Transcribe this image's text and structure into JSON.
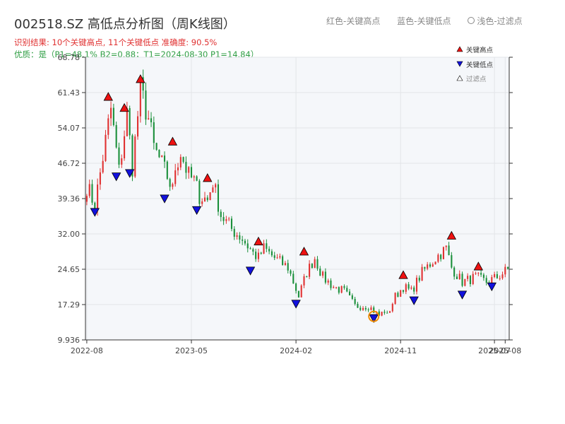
{
  "title": "002518.SZ 高低点分析图（周K线图）",
  "subtitle_result": "识别结果: 10个关键高点, 11个关键低点  准确度: 90.5%",
  "subtitle_quality": "优质：是（P1=48.1%  B2=0.88；T1=2024-08-30 P1=14.84）",
  "legend_top": {
    "red": "红色-关键高点",
    "blue": "蓝色-关键低点",
    "light": "浅色-过滤点"
  },
  "legend_box": {
    "high": "关键高点",
    "low": "关键低点",
    "filtered": "过滤点"
  },
  "colors": {
    "up": "#e03131",
    "down": "#1a8f3a",
    "high_marker": "#ee1111",
    "low_marker": "#1111dd",
    "highlight": "#f08c00",
    "plot_bg": "#f5f7fa",
    "grid": "#e2e4e8"
  },
  "chart_data": {
    "type": "candlestick",
    "ylim": [
      9.936,
      68.78
    ],
    "yticks": [
      "9.936",
      "17.29",
      "24.65",
      "32.00",
      "39.36",
      "46.72",
      "54.07",
      "61.43",
      "68.78"
    ],
    "xticks": [
      {
        "label": "2022-08",
        "week": 0
      },
      {
        "label": "2023-05",
        "week": 39
      },
      {
        "label": "2024-02",
        "week": 78
      },
      {
        "label": "2024-11",
        "week": 117
      },
      {
        "label": "2025-07",
        "week": 152
      },
      {
        "label": "2025-08",
        "week": 156
      }
    ],
    "grid": true,
    "total_weeks": 158,
    "path": [
      [
        0,
        42
      ],
      [
        3,
        38
      ],
      [
        9,
        58
      ],
      [
        12,
        45
      ],
      [
        15,
        57
      ],
      [
        17,
        46
      ],
      [
        20,
        62
      ],
      [
        23,
        56
      ],
      [
        25,
        50
      ],
      [
        30,
        44
      ],
      [
        32,
        41
      ],
      [
        33,
        46
      ],
      [
        35,
        49
      ],
      [
        38,
        44
      ],
      [
        40,
        43
      ],
      [
        42,
        40
      ],
      [
        45,
        39
      ],
      [
        47,
        43
      ],
      [
        50,
        36
      ],
      [
        54,
        33
      ],
      [
        58,
        31
      ],
      [
        62,
        28
      ],
      [
        64,
        27
      ],
      [
        66,
        29
      ],
      [
        70,
        27
      ],
      [
        75,
        25
      ],
      [
        79,
        19
      ],
      [
        82,
        24
      ],
      [
        85,
        27
      ],
      [
        88,
        23
      ],
      [
        92,
        21
      ],
      [
        96,
        20
      ],
      [
        100,
        17
      ],
      [
        105,
        17
      ],
      [
        109,
        15
      ],
      [
        111,
        16
      ],
      [
        112,
        15
      ],
      [
        115,
        19
      ],
      [
        118,
        21
      ],
      [
        121,
        20
      ],
      [
        125,
        24
      ],
      [
        130,
        27
      ],
      [
        134,
        29
      ],
      [
        136,
        25
      ],
      [
        140,
        22
      ],
      [
        145,
        23
      ],
      [
        149,
        22
      ],
      [
        153,
        23
      ],
      [
        158,
        25
      ]
    ],
    "highs": [
      {
        "week": 8,
        "price": 59.5
      },
      {
        "week": 14,
        "price": 57.2
      },
      {
        "week": 20,
        "price": 63.2
      },
      {
        "week": 32,
        "price": 50.2
      },
      {
        "week": 45,
        "price": 42.6
      },
      {
        "week": 64,
        "price": 29.4
      },
      {
        "week": 81,
        "price": 27.3
      },
      {
        "week": 118,
        "price": 22.4
      },
      {
        "week": 136,
        "price": 30.6
      },
      {
        "week": 146,
        "price": 24.2
      }
    ],
    "lows": [
      {
        "week": 3,
        "price": 37.6
      },
      {
        "week": 11,
        "price": 45.0
      },
      {
        "week": 16,
        "price": 45.7
      },
      {
        "week": 29,
        "price": 40.4
      },
      {
        "week": 41,
        "price": 38.0
      },
      {
        "week": 61,
        "price": 25.4
      },
      {
        "week": 78,
        "price": 18.5
      },
      {
        "week": 107,
        "price": 15.5
      },
      {
        "week": 122,
        "price": 19.2
      },
      {
        "week": 140,
        "price": 20.4
      },
      {
        "week": 151,
        "price": 22.1
      }
    ],
    "highlight": {
      "week": 107,
      "price": 14.84
    }
  }
}
